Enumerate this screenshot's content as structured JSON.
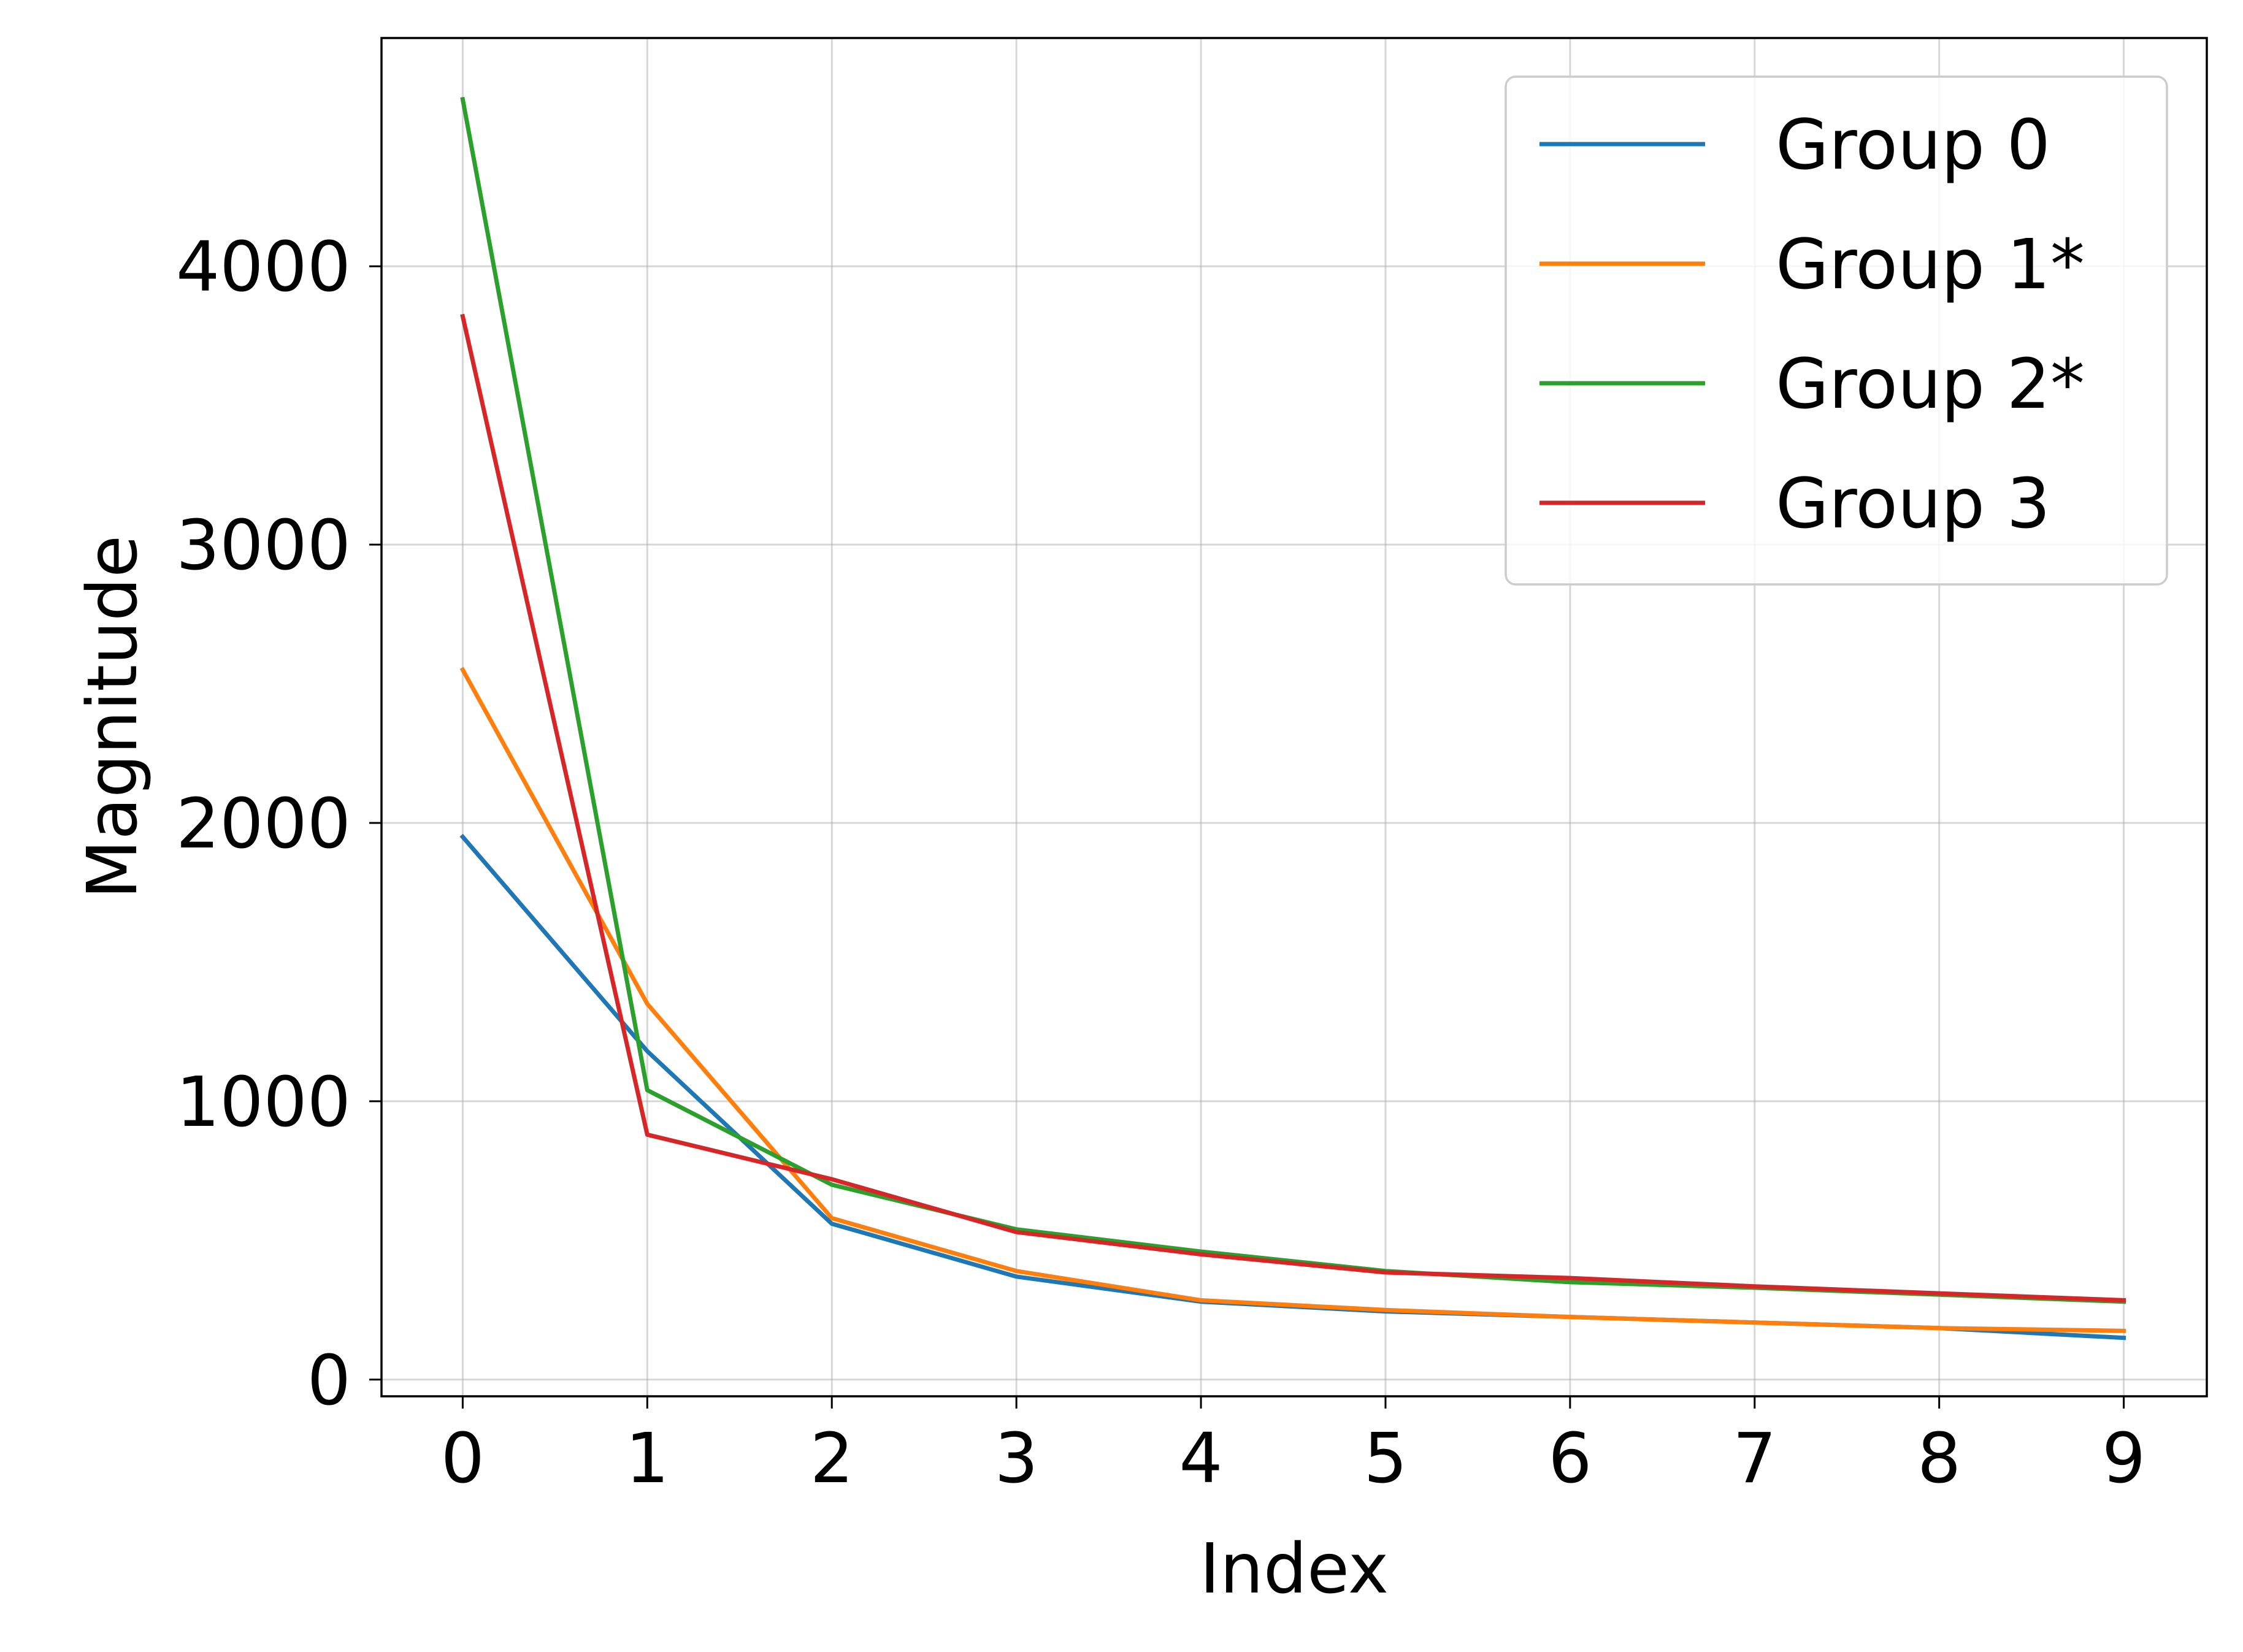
{
  "chart_data": {
    "type": "line",
    "title": "",
    "xlabel": "Index",
    "ylabel": "Magnitude",
    "x": [
      0,
      1,
      2,
      3,
      4,
      5,
      6,
      7,
      8,
      9
    ],
    "xticks": [
      "0",
      "1",
      "2",
      "3",
      "4",
      "5",
      "6",
      "7",
      "8",
      "9"
    ],
    "yticks": [
      0,
      1000,
      2000,
      3000,
      4000
    ],
    "ytick_labels": [
      "0",
      "1000",
      "2000",
      "3000",
      "4000"
    ],
    "xlim": [
      -0.44,
      9.45
    ],
    "ylim": [
      -60,
      4820
    ],
    "grid": true,
    "legend_position": "top-right",
    "series": [
      {
        "name": "Group 0",
        "color": "#1f77b4",
        "values": [
          1950,
          1180,
          560,
          370,
          280,
          245,
          225,
          205,
          185,
          150
        ]
      },
      {
        "name": "Group 1*",
        "color": "#ff7f0e",
        "values": [
          2550,
          1350,
          580,
          390,
          285,
          250,
          225,
          205,
          185,
          175
        ]
      },
      {
        "name": "Group 2*",
        "color": "#2ca02c",
        "values": [
          4600,
          1040,
          700,
          540,
          460,
          390,
          350,
          330,
          305,
          280
        ]
      },
      {
        "name": "Group 3",
        "color": "#d62728",
        "values": [
          3820,
          880,
          720,
          530,
          450,
          385,
          365,
          335,
          310,
          285
        ]
      }
    ]
  }
}
